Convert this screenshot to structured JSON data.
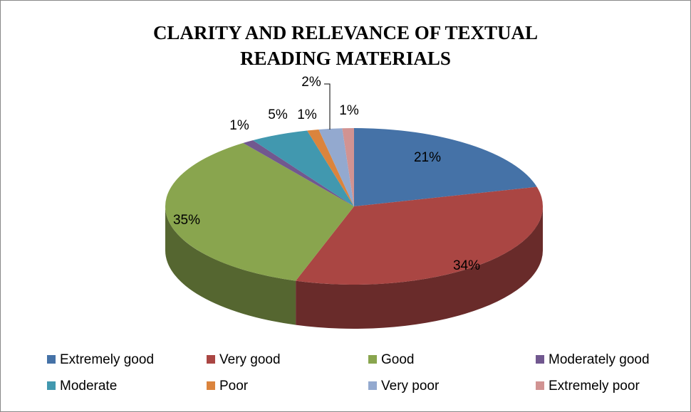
{
  "chart_data": {
    "type": "pie3d",
    "title": "CLARITY AND RELEVANCE OF TEXTUAL READING MATERIALS",
    "categories": [
      "Extremely good",
      "Very good",
      "Good",
      "Moderately good",
      "Moderate",
      "Poor",
      "Very poor",
      "Extremely poor"
    ],
    "values": [
      21,
      34,
      35,
      1,
      5,
      1,
      2,
      1
    ],
    "value_labels": [
      "21%",
      "34%",
      "35%",
      "1%",
      "5%",
      "1%",
      "2%",
      "1%"
    ],
    "colors": [
      "#4572a7",
      "#aa4643",
      "#89a54e",
      "#71588f",
      "#4198af",
      "#db843d",
      "#93a9cf",
      "#d19392"
    ],
    "legend": "bottom"
  }
}
